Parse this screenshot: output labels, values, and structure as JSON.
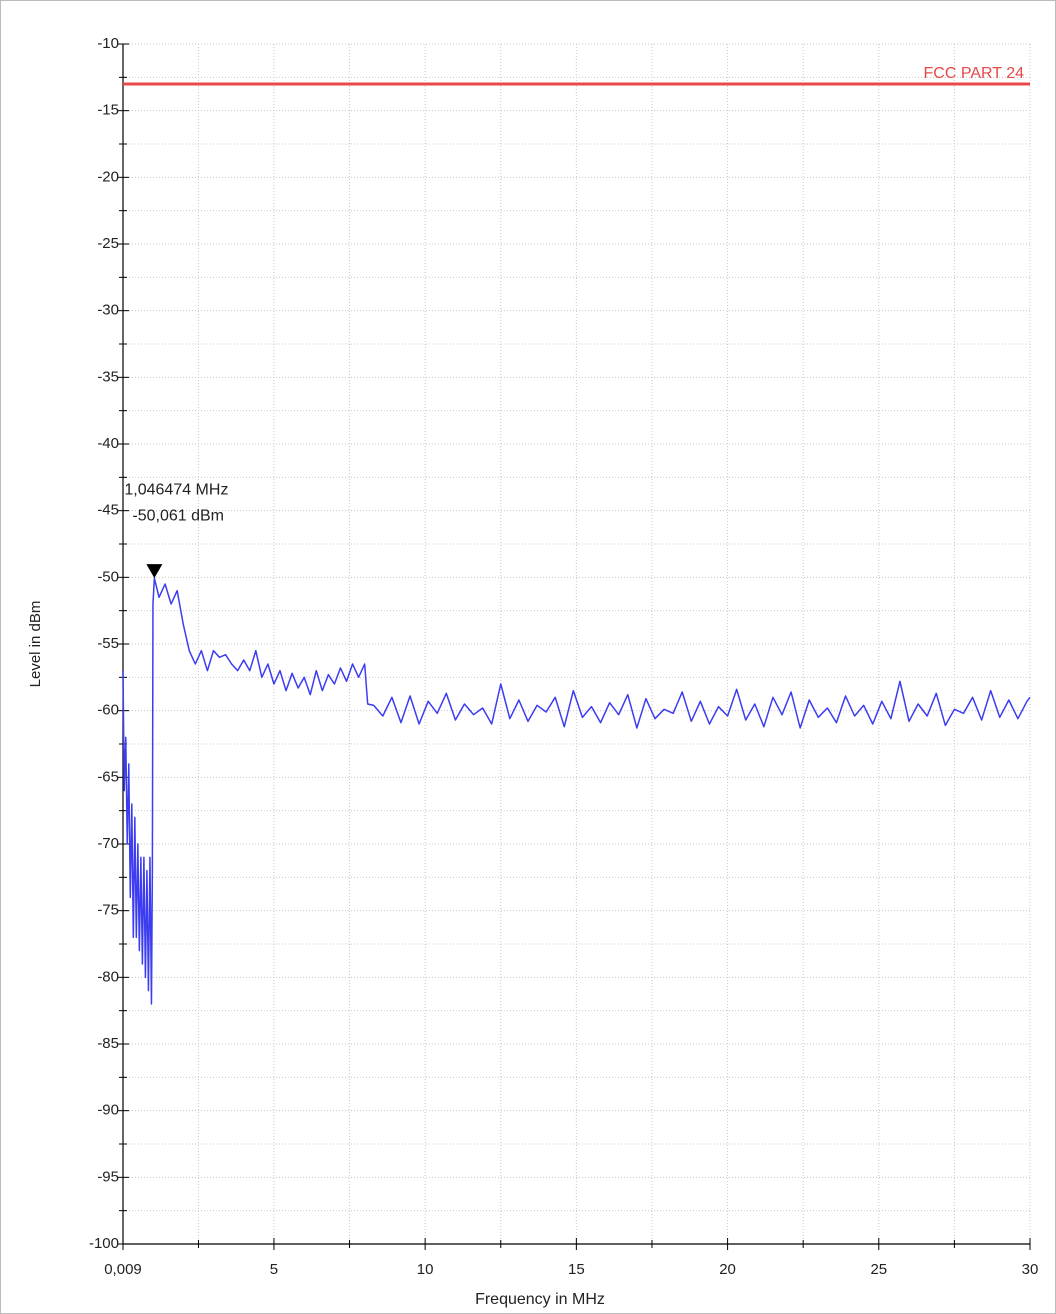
{
  "chart_data": {
    "type": "line",
    "x_label": "Frequency in MHz",
    "y_label": "Level in dBm",
    "xlim": [
      0.009,
      30
    ],
    "ylim": [
      -100,
      -10
    ],
    "xticks": [
      {
        "value": 0.009,
        "label": "0,009"
      },
      5,
      10,
      15,
      20,
      25,
      30
    ],
    "yticks": [
      -10,
      -15,
      -20,
      -25,
      -30,
      -35,
      -40,
      -45,
      -50,
      -55,
      -60,
      -65,
      -70,
      -75,
      -80,
      -85,
      -90,
      -95,
      -100
    ],
    "grid": true,
    "color": "#3c3cf0",
    "x": [
      0.009,
      0.05,
      0.1,
      0.15,
      0.2,
      0.25,
      0.3,
      0.35,
      0.4,
      0.45,
      0.5,
      0.55,
      0.6,
      0.65,
      0.7,
      0.75,
      0.8,
      0.85,
      0.9,
      0.95,
      0.98,
      1.0,
      1.046474,
      1.2,
      1.4,
      1.6,
      1.8,
      2.0,
      2.2,
      2.4,
      2.6,
      2.8,
      3.0,
      3.2,
      3.4,
      3.6,
      3.8,
      4.0,
      4.2,
      4.4,
      4.6,
      4.8,
      5.0,
      5.2,
      5.4,
      5.6,
      5.8,
      6.0,
      6.2,
      6.4,
      6.6,
      6.8,
      7.0,
      7.2,
      7.4,
      7.6,
      7.8,
      8.0,
      8.1,
      8.3,
      8.6,
      8.9,
      9.2,
      9.5,
      9.8,
      10.1,
      10.4,
      10.7,
      11,
      11.3,
      11.6,
      11.9,
      12.2,
      12.5,
      12.8,
      13.1,
      13.4,
      13.7,
      14,
      14.3,
      14.6,
      14.9,
      15.2,
      15.5,
      15.8,
      16.1,
      16.4,
      16.7,
      17,
      17.3,
      17.6,
      17.9,
      18.2,
      18.5,
      18.8,
      19.1,
      19.4,
      19.7,
      20,
      20.3,
      20.6,
      20.9,
      21.2,
      21.5,
      21.8,
      22.1,
      22.4,
      22.7,
      23,
      23.3,
      23.6,
      23.9,
      24.2,
      24.5,
      24.8,
      25.1,
      25.4,
      25.7,
      26,
      26.3,
      26.6,
      26.9,
      27.2,
      27.5,
      27.8,
      28.1,
      28.4,
      28.7,
      29,
      29.3,
      29.6,
      29.9,
      30
    ],
    "values": [
      -57,
      -66,
      -62,
      -70,
      -64,
      -74,
      -67,
      -77,
      -68,
      -77,
      -70,
      -78,
      -71,
      -79,
      -71,
      -80,
      -72,
      -81,
      -71,
      -82,
      -72,
      -52,
      -50.061,
      -51.5,
      -50.5,
      -52,
      -51,
      -53.5,
      -55.5,
      -56.5,
      -55.5,
      -57,
      -55.5,
      -56,
      -55.8,
      -56.5,
      -57,
      -56.2,
      -57,
      -55.5,
      -57.5,
      -56.5,
      -58,
      -57,
      -58.5,
      -57.2,
      -58.3,
      -57.5,
      -58.8,
      -57,
      -58.5,
      -57.3,
      -58,
      -56.8,
      -57.8,
      -56.5,
      -57.5,
      -56.5,
      -59.5,
      -59.6,
      -60.4,
      -59.0,
      -60.9,
      -58.9,
      -61.0,
      -59.3,
      -60.2,
      -58.7,
      -60.7,
      -59.5,
      -60.3,
      -59.8,
      -61.0,
      -58.0,
      -60.6,
      -59.2,
      -60.8,
      -59.6,
      -60.1,
      -59.0,
      -61.2,
      -58.5,
      -60.5,
      -59.7,
      -60.9,
      -59.4,
      -60.3,
      -58.8,
      -61.3,
      -59.1,
      -60.6,
      -59.9,
      -60.2,
      -58.6,
      -60.8,
      -59.3,
      -61.0,
      -59.7,
      -60.4,
      -58.4,
      -60.7,
      -59.5,
      -61.2,
      -59.0,
      -60.3,
      -58.6,
      -61.3,
      -59.2,
      -60.5,
      -59.8,
      -60.9,
      -58.9,
      -60.4,
      -59.6,
      -61.0,
      -59.3,
      -60.6,
      -57.8,
      -60.8,
      -59.5,
      -60.4,
      -58.7,
      -61.1,
      -59.9,
      -60.2,
      -59.0,
      -60.7,
      -58.5,
      -60.5,
      -59.2,
      -60.6,
      -59.3,
      -59
    ],
    "limit_line": {
      "label": "FCC PART 24",
      "value": -13,
      "color": "#e84848"
    },
    "marker": {
      "x": 1.046474,
      "y": -50.061,
      "x_label": "1,046474 MHz",
      "y_label": "-50,061 dBm"
    }
  }
}
